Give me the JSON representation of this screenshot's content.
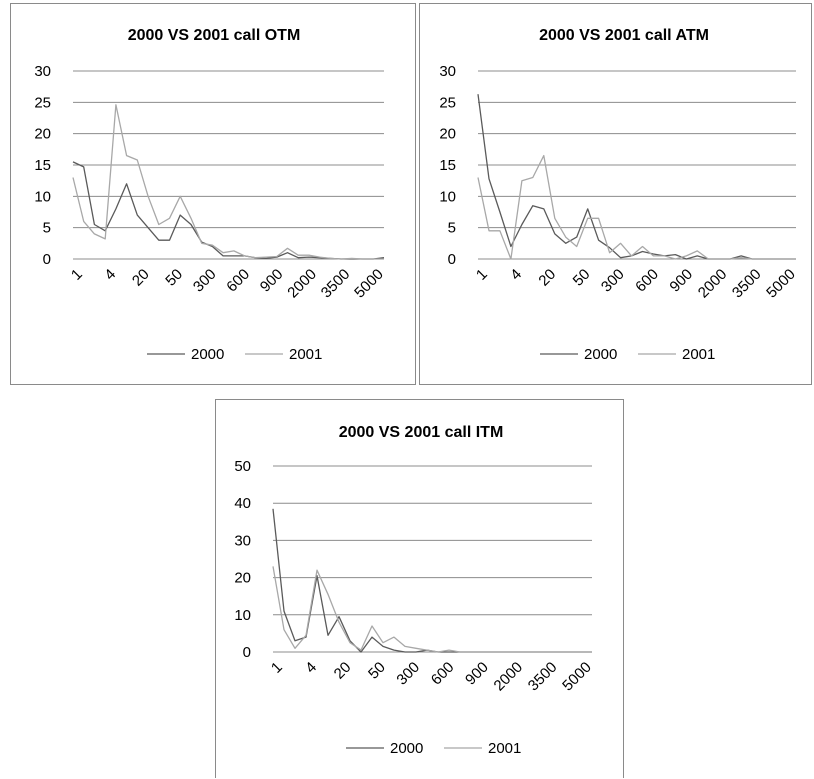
{
  "chart_data": [
    {
      "type": "line",
      "title": "2000 VS 2001 call OTM",
      "x_tick_labels": [
        "1",
        "4",
        "20",
        "50",
        "300",
        "600",
        "900",
        "2000",
        "3500",
        "5000"
      ],
      "ylim": [
        0,
        30
      ],
      "y_ticks": [
        0,
        5,
        10,
        15,
        20,
        25,
        30
      ],
      "grid": true,
      "legend": "bottom",
      "series": [
        {
          "name": "2000",
          "color": "#5a5a5a",
          "values": [
            15.5,
            14.7,
            5.5,
            4.5,
            8,
            12,
            7,
            5,
            3,
            3,
            7,
            5.5,
            2.7,
            2,
            0.5,
            0.5,
            0.5,
            0.2,
            0.1,
            0.3,
            1.0,
            0.2,
            0.3,
            0.2,
            0.1,
            0,
            0,
            0,
            0,
            0.2
          ]
        },
        {
          "name": "2001",
          "color": "#a8a8a8",
          "values": [
            13,
            6,
            4,
            3.2,
            24.6,
            16.5,
            15.8,
            10,
            5.5,
            6.5,
            10,
            6.5,
            2.5,
            2.2,
            1,
            1.3,
            0.5,
            0.2,
            0.3,
            0.4,
            1.7,
            0.6,
            0.6,
            0.3,
            0.1,
            0,
            0.1,
            0,
            0,
            0
          ]
        }
      ]
    },
    {
      "type": "line",
      "title": "2000 VS 2001 call ATM",
      "x_tick_labels": [
        "1",
        "4",
        "20",
        "50",
        "300",
        "600",
        "900",
        "2000",
        "3500",
        "5000"
      ],
      "ylim": [
        0,
        30
      ],
      "y_ticks": [
        0,
        5,
        10,
        15,
        20,
        25,
        30
      ],
      "grid": true,
      "legend": "bottom",
      "series": [
        {
          "name": "2000",
          "color": "#5a5a5a",
          "values": [
            26.3,
            12.8,
            7.5,
            2,
            5.5,
            8.5,
            8,
            4,
            2.5,
            3.5,
            8,
            3,
            1.8,
            0.2,
            0.5,
            1.2,
            0.8,
            0.5,
            0.7,
            0,
            0.5,
            0,
            0,
            0,
            0.5,
            0,
            0,
            0,
            0,
            0
          ]
        },
        {
          "name": "2001",
          "color": "#a8a8a8",
          "values": [
            13,
            4.5,
            4.5,
            0,
            12.5,
            13,
            16.5,
            6.5,
            3.5,
            2,
            6.5,
            6.5,
            1,
            2.5,
            0.5,
            2,
            0.5,
            0.5,
            0,
            0.5,
            1.3,
            0,
            0,
            0,
            0.2,
            0,
            0,
            0,
            0,
            0
          ]
        }
      ]
    },
    {
      "type": "line",
      "title": "2000 VS 2001 call ITM",
      "x_tick_labels": [
        "1",
        "4",
        "20",
        "50",
        "300",
        "600",
        "900",
        "2000",
        "3500",
        "5000"
      ],
      "ylim": [
        0,
        50
      ],
      "y_ticks": [
        0,
        10,
        20,
        30,
        40,
        50
      ],
      "grid": true,
      "legend": "bottom",
      "series": [
        {
          "name": "2000",
          "color": "#5a5a5a",
          "values": [
            38.5,
            11,
            3,
            4,
            20.5,
            4.5,
            9.5,
            3,
            0,
            4,
            1.5,
            0.5,
            0,
            0,
            0.5,
            0,
            0,
            0,
            0,
            0,
            0,
            0,
            0,
            0,
            0,
            0,
            0,
            0,
            0,
            0
          ]
        },
        {
          "name": "2001",
          "color": "#a8a8a8",
          "values": [
            23,
            6,
            1,
            4.5,
            22,
            15.5,
            8,
            2.5,
            0.5,
            7,
            2.5,
            4,
            1.5,
            1,
            0.5,
            0,
            0.5,
            0,
            0,
            0,
            0,
            0,
            0,
            0,
            0,
            0,
            0,
            0,
            0,
            0
          ]
        }
      ]
    }
  ]
}
